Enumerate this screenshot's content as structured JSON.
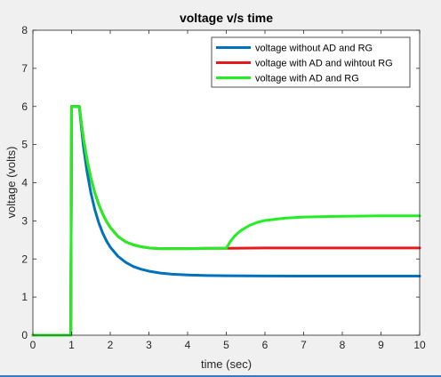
{
  "chart_data": {
    "type": "line",
    "title": "voltage v/s time",
    "xlabel": "time (sec)",
    "ylabel": "voltage (volts)",
    "xlim": [
      0,
      10
    ],
    "ylim": [
      0,
      8
    ],
    "xticks": [
      0,
      1,
      2,
      3,
      4,
      5,
      6,
      7,
      8,
      9,
      10
    ],
    "yticks": [
      0,
      1,
      2,
      3,
      4,
      5,
      6,
      7,
      8
    ],
    "grid": false,
    "legend_position": "top-right",
    "series": [
      {
        "name": "voltage without AD and RG",
        "color": "#0072bd",
        "x": [
          0,
          0.98,
          1.0,
          1.1,
          1.2,
          1.3,
          1.4,
          1.5,
          1.6,
          1.7,
          1.8,
          1.9,
          2.0,
          2.2,
          2.4,
          2.6,
          2.8,
          3.0,
          3.3,
          3.6,
          4.0,
          4.5,
          5.0,
          6.0,
          7.0,
          8.0,
          9.0,
          10.0
        ],
        "y": [
          0,
          0,
          6,
          6,
          6,
          5.0,
          4.29,
          3.73,
          3.3,
          2.96,
          2.69,
          2.48,
          2.31,
          2.07,
          1.91,
          1.8,
          1.73,
          1.68,
          1.63,
          1.6,
          1.58,
          1.565,
          1.56,
          1.555,
          1.55,
          1.55,
          1.55,
          1.55
        ]
      },
      {
        "name": "voltage with AD and wihtout RG",
        "color": "#e41a1c",
        "x": [
          0,
          0.98,
          1.0,
          1.1,
          1.2,
          1.3,
          1.4,
          1.5,
          1.6,
          1.7,
          1.8,
          1.9,
          2.0,
          2.2,
          2.4,
          2.6,
          2.8,
          3.0,
          3.3,
          3.6,
          4.0,
          4.5,
          5.0,
          6.0,
          7.0,
          8.0,
          9.0,
          10.0
        ],
        "y": [
          0,
          0,
          6,
          6,
          6,
          5.2,
          4.6,
          4.12,
          3.74,
          3.44,
          3.19,
          2.99,
          2.83,
          2.59,
          2.45,
          2.37,
          2.32,
          2.29,
          2.27,
          2.27,
          2.27,
          2.28,
          2.28,
          2.29,
          2.29,
          2.29,
          2.29,
          2.29
        ]
      },
      {
        "name": "voltage with AD and RG",
        "color": "#22ee22",
        "x": [
          0,
          0.98,
          1.0,
          1.1,
          1.2,
          1.3,
          1.4,
          1.5,
          1.6,
          1.7,
          1.8,
          1.9,
          2.0,
          2.2,
          2.4,
          2.6,
          2.8,
          3.0,
          3.3,
          3.6,
          4.0,
          4.5,
          5.0,
          5.1,
          5.2,
          5.3,
          5.4,
          5.6,
          5.8,
          6.0,
          6.5,
          7.0,
          8.0,
          9.0,
          10.0
        ],
        "y": [
          0,
          0,
          6,
          6,
          6,
          5.2,
          4.6,
          4.12,
          3.74,
          3.44,
          3.19,
          2.99,
          2.83,
          2.59,
          2.45,
          2.37,
          2.32,
          2.29,
          2.27,
          2.27,
          2.27,
          2.28,
          2.28,
          2.45,
          2.58,
          2.68,
          2.76,
          2.88,
          2.96,
          3.01,
          3.07,
          3.1,
          3.12,
          3.13,
          3.13
        ]
      }
    ]
  }
}
